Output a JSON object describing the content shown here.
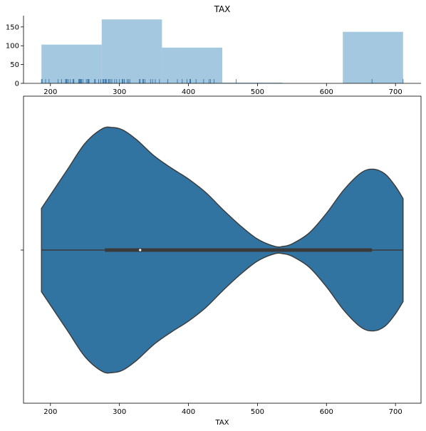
{
  "chart_data": [
    {
      "type": "bar",
      "kind": "histogram",
      "title": "TAX",
      "xlabel": "",
      "ylabel": "",
      "xlim": [
        161,
        737
      ],
      "ylim": [
        0,
        180
      ],
      "xticks": [
        200,
        300,
        400,
        500,
        600,
        700
      ],
      "yticks": [
        0,
        50,
        100,
        150
      ],
      "bin_edges": [
        187,
        274.3,
        361.7,
        449,
        536.3,
        623.7,
        711
      ],
      "counts": [
        103,
        170,
        95,
        2,
        0,
        137
      ],
      "bar_color": "#a4c8e0",
      "rug_color": "#2e6da3",
      "rug_values": [
        187,
        188,
        193,
        198,
        211,
        216,
        222,
        223,
        224,
        226,
        229,
        233,
        233,
        234,
        241,
        242,
        243,
        244,
        245,
        247,
        252,
        254,
        255,
        256,
        264,
        265,
        270,
        273,
        276,
        277,
        279,
        280,
        281,
        284,
        285,
        287,
        289,
        293,
        296,
        300,
        304,
        305,
        307,
        307,
        311,
        313,
        315,
        329,
        330,
        334,
        335,
        337,
        345,
        348,
        352,
        358,
        370,
        384,
        391,
        398,
        402,
        403,
        403,
        411,
        422,
        430,
        432,
        437,
        469,
        666,
        711
      ],
      "spines": "left-bottom",
      "grid": false
    },
    {
      "type": "violin",
      "title": "",
      "xlabel": "TAX",
      "xlim": [
        161,
        737
      ],
      "xticks": [
        200,
        300,
        400,
        500,
        600,
        700
      ],
      "yticks": [
        ""
      ],
      "min": 187,
      "q1": 279,
      "median": 330,
      "q3": 666,
      "max": 711,
      "fill_color": "#3274a1",
      "edge_color": "#3a3a3a",
      "density": {
        "x": [
          187,
          200,
          225,
          250,
          275,
          290,
          305,
          325,
          350,
          375,
          400,
          425,
          450,
          475,
          500,
          525,
          537,
          550,
          575,
          600,
          625,
          650,
          668,
          685,
          700,
          711
        ],
        "half_width": [
          0.34,
          0.45,
          0.66,
          0.87,
          0.99,
          1.0,
          0.98,
          0.9,
          0.77,
          0.67,
          0.58,
          0.47,
          0.33,
          0.2,
          0.09,
          0.03,
          0.03,
          0.05,
          0.14,
          0.3,
          0.49,
          0.63,
          0.66,
          0.62,
          0.52,
          0.42
        ]
      },
      "spines": "all",
      "grid": false
    }
  ]
}
